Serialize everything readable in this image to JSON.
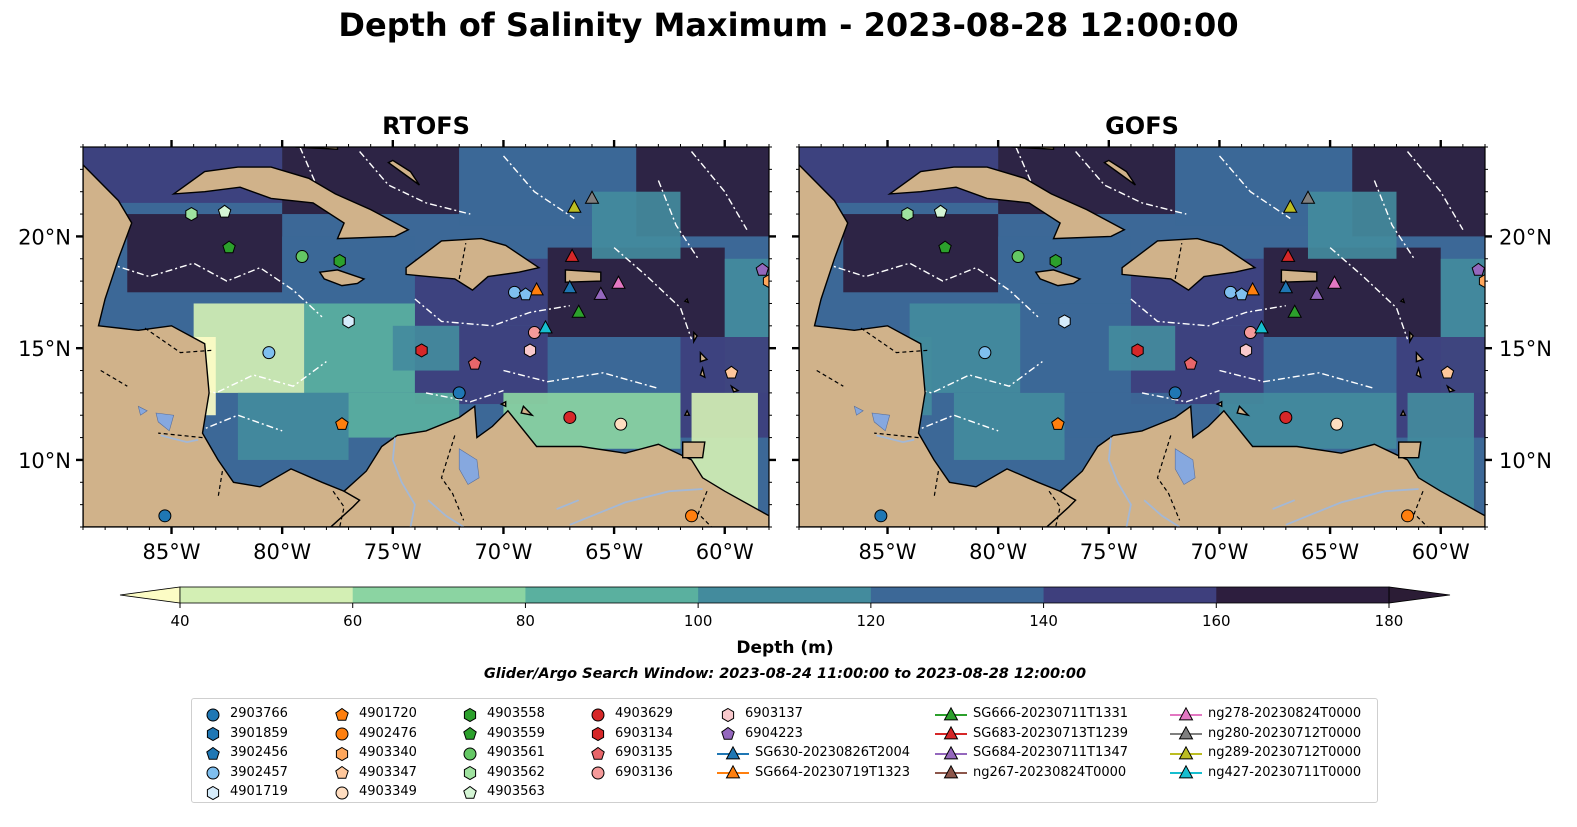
{
  "title": "Depth of Salinity Maximum - 2023-08-28 12:00:00",
  "panels": [
    {
      "title": "RTOFS"
    },
    {
      "title": "GOFS"
    }
  ],
  "colors": {
    "land": "#d0b28a",
    "water_bodies": "#a3b8d6",
    "lake": "#86a8df",
    "contour_line": "#ffffff",
    "coastline": "#000000"
  },
  "chart_data": {
    "type": "heatmap",
    "variable": "Depth of Salinity Maximum",
    "map_extent": {
      "lon": [
        -89,
        -58
      ],
      "lat": [
        7,
        24
      ]
    },
    "x_ticks": [
      -85,
      -80,
      -75,
      -70,
      -65,
      -60
    ],
    "x_tick_labels": [
      "85°W",
      "80°W",
      "75°W",
      "70°W",
      "65°W",
      "60°W"
    ],
    "y_ticks": [
      10,
      15,
      20
    ],
    "y_tick_labels": [
      "10°N",
      "15°N",
      "20°N"
    ],
    "colorbar": {
      "label": "Depth (m)",
      "ticks": [
        40,
        60,
        80,
        100,
        120,
        140,
        160,
        180
      ],
      "levels": [
        40,
        60,
        80,
        100,
        120,
        140,
        160,
        180
      ],
      "colors": [
        "#fcfcc5",
        "#d3efb4",
        "#8bd4a2",
        "#5ab09f",
        "#438b9d",
        "#3c6897",
        "#3e3f7d",
        "#2d1e3e",
        "#2b1c35"
      ],
      "extend": "both"
    },
    "search_window": "Glider/Argo Search Window: 2023-08-24 11:00:00 to 2023-08-28 12:00:00",
    "observations": [
      {
        "name": "2903766",
        "marker": "circle",
        "color": "#1f77b4",
        "lon": -85.3,
        "lat": 7.5
      },
      {
        "name": "3901859",
        "marker": "hexagon",
        "color": "#1f77b4"
      },
      {
        "name": "3902456",
        "marker": "pentagon",
        "color": "#1f77b4"
      },
      {
        "name": "3902457",
        "marker": "circle",
        "color": "#7fbfef",
        "lon": -80.6,
        "lat": 14.8
      },
      {
        "name": "4901719",
        "marker": "hexagon",
        "color": "#d6ecfb",
        "lon": -77.0,
        "lat": 16.2
      },
      {
        "name": "4901720",
        "marker": "pentagon",
        "color": "#ff7f0e",
        "lon": -77.3,
        "lat": 11.6
      },
      {
        "name": "4902476",
        "marker": "circle",
        "color": "#ff7f0e",
        "lon": -61.5,
        "lat": 7.5
      },
      {
        "name": "4903340",
        "marker": "hexagon",
        "color": "#ffa75c",
        "lon": -58.0,
        "lat": 18.0
      },
      {
        "name": "4903347",
        "marker": "pentagon",
        "color": "#ffc79b",
        "lon": -59.7,
        "lat": 13.9
      },
      {
        "name": "4903349",
        "marker": "circle",
        "color": "#ffddc0",
        "lon": -64.7,
        "lat": 11.6
      },
      {
        "name": "4903558",
        "marker": "hexagon",
        "color": "#2ca02c",
        "lon": -77.4,
        "lat": 18.9
      },
      {
        "name": "4903559",
        "marker": "pentagon",
        "color": "#2ca02c",
        "lon": -82.4,
        "lat": 19.5
      },
      {
        "name": "4903561",
        "marker": "circle",
        "color": "#64c764",
        "lon": -79.1,
        "lat": 19.1
      },
      {
        "name": "4903562",
        "marker": "hexagon",
        "color": "#9fe29f",
        "lon": -84.1,
        "lat": 21.0
      },
      {
        "name": "4903563",
        "marker": "pentagon",
        "color": "#d4f5d4",
        "lon": -82.6,
        "lat": 21.1
      },
      {
        "name": "4903629",
        "marker": "circle",
        "color": "#d62728",
        "lon": -67.0,
        "lat": 11.9
      },
      {
        "name": "6903134",
        "marker": "hexagon",
        "color": "#d62728",
        "lon": -73.7,
        "lat": 14.9
      },
      {
        "name": "6903135",
        "marker": "pentagon",
        "color": "#e8666a",
        "lon": -71.3,
        "lat": 14.3
      },
      {
        "name": "6903136",
        "marker": "circle",
        "color": "#f59a9a",
        "lon": -68.6,
        "lat": 15.7
      },
      {
        "name": "6903137",
        "marker": "hexagon",
        "color": "#f9c9cc",
        "lon": -68.8,
        "lat": 14.9
      },
      {
        "name": "6904223",
        "marker": "pentagon",
        "color": "#9467bd",
        "lon": -58.3,
        "lat": 18.5
      },
      {
        "name": "SG630-20230826T2004",
        "marker": "triangle",
        "color": "#1f77b4",
        "line": true,
        "lon": -67.0,
        "lat": 17.7
      },
      {
        "name": "SG664-20230719T1323",
        "marker": "triangle",
        "color": "#ff7f0e",
        "line": true,
        "lon": -68.5,
        "lat": 17.6
      },
      {
        "name": "SG666-20230711T1331",
        "marker": "triangle",
        "color": "#2ca02c",
        "line": true,
        "lon": -66.6,
        "lat": 16.6
      },
      {
        "name": "SG683-20230713T1239",
        "marker": "triangle",
        "color": "#d62728",
        "line": true,
        "lon": -66.9,
        "lat": 19.1
      },
      {
        "name": "SG684-20230711T1347",
        "marker": "triangle",
        "color": "#9467bd",
        "line": true,
        "lon": -65.6,
        "lat": 17.4
      },
      {
        "name": "ng267-20230824T0000",
        "marker": "triangle",
        "color": "#8c564b",
        "line": true
      },
      {
        "name": "ng278-20230824T0000",
        "marker": "triangle",
        "color": "#e377c2",
        "line": true,
        "lon": -64.8,
        "lat": 17.9
      },
      {
        "name": "ng280-20230712T0000",
        "marker": "triangle",
        "color": "#7f7f7f",
        "line": true,
        "lon": -66.0,
        "lat": 21.7
      },
      {
        "name": "ng289-20230712T0000",
        "marker": "triangle",
        "color": "#bcbd22",
        "line": true,
        "lon": -66.8,
        "lat": 21.3
      },
      {
        "name": "ng427-20230711T0000",
        "marker": "triangle",
        "color": "#17becf",
        "line": true,
        "lon": -68.1,
        "lat": 15.9
      },
      {
        "name": "3901859-b",
        "marker": "circle",
        "color": "#1f77b4",
        "lon": -72.0,
        "lat": 13.0,
        "legend": false
      },
      {
        "name": "3902457-b",
        "marker": "circle",
        "color": "#7fbfef",
        "lon": -69.5,
        "lat": 17.5,
        "legend": false
      },
      {
        "name": "3902456-b",
        "marker": "pentagon",
        "color": "#7fbfef",
        "lon": -69.0,
        "lat": 17.4,
        "legend": false
      }
    ]
  },
  "legend_columns": [
    [
      "2903766",
      "3901859",
      "3902456",
      "3902457",
      "4901719"
    ],
    [
      "4901720",
      "4902476",
      "4903340",
      "4903347",
      "4903349"
    ],
    [
      "4903558",
      "4903559",
      "4903561",
      "4903562",
      "4903563"
    ],
    [
      "4903629",
      "6903134",
      "6903135",
      "6903136"
    ],
    [
      "6903137",
      "6904223",
      "SG630-20230826T2004",
      "SG664-20230719T1323"
    ],
    [
      "SG666-20230711T1331",
      "SG683-20230713T1239",
      "SG684-20230711T1347",
      "ng267-20230824T0000"
    ],
    [
      "ng278-20230824T0000",
      "ng280-20230712T0000",
      "ng289-20230712T0000",
      "ng427-20230711T0000"
    ]
  ]
}
